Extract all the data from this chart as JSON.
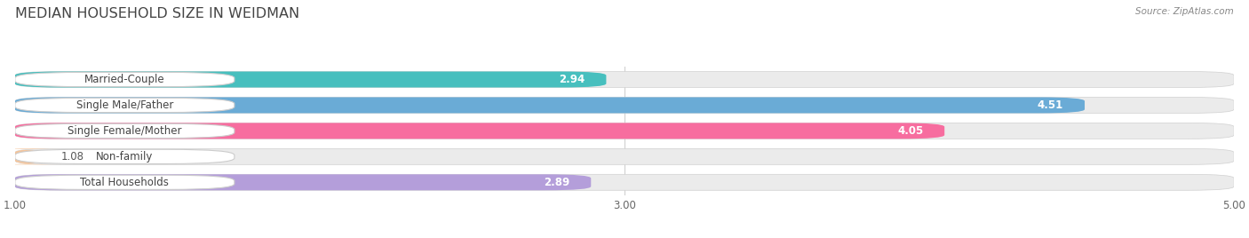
{
  "title": "MEDIAN HOUSEHOLD SIZE IN WEIDMAN",
  "source": "Source: ZipAtlas.com",
  "categories": [
    "Married-Couple",
    "Single Male/Father",
    "Single Female/Mother",
    "Non-family",
    "Total Households"
  ],
  "values": [
    2.94,
    4.51,
    4.05,
    1.08,
    2.89
  ],
  "bar_colors": [
    "#47bfbe",
    "#6aabd6",
    "#f76d9f",
    "#f5c49a",
    "#b49eda"
  ],
  "xlim": [
    1.0,
    5.0
  ],
  "xticks": [
    1.0,
    3.0,
    5.0
  ],
  "bar_bg_color": "#e8e8e8",
  "title_fontsize": 11.5,
  "label_fontsize": 8.5,
  "value_fontsize": 8.5,
  "bar_height": 0.62,
  "figsize": [
    14.06,
    2.68
  ]
}
